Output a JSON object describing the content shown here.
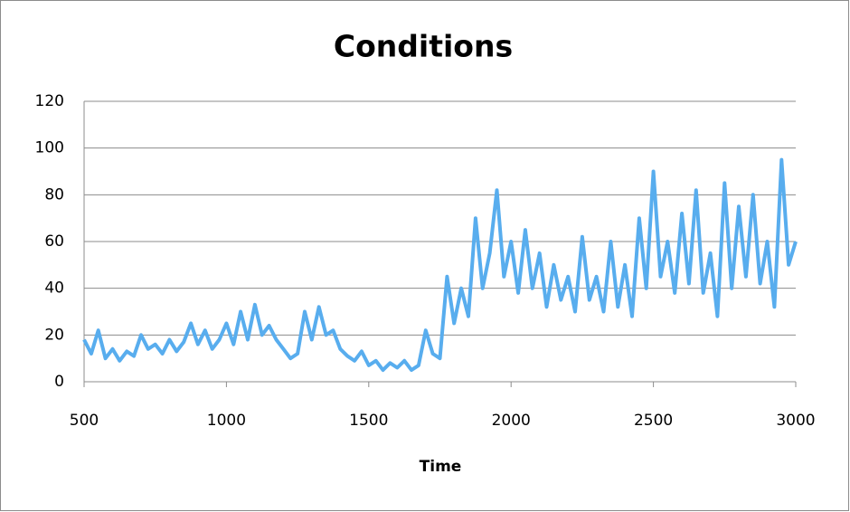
{
  "chart_data": {
    "type": "line",
    "title": "Conditions",
    "x_label": "Time",
    "x": [
      500,
      525,
      550,
      575,
      600,
      625,
      650,
      675,
      700,
      725,
      750,
      775,
      800,
      825,
      850,
      875,
      900,
      925,
      950,
      975,
      1000,
      1025,
      1050,
      1075,
      1100,
      1125,
      1150,
      1175,
      1200,
      1225,
      1250,
      1275,
      1300,
      1325,
      1350,
      1375,
      1400,
      1425,
      1450,
      1475,
      1500,
      1525,
      1550,
      1575,
      1600,
      1625,
      1650,
      1675,
      1700,
      1725,
      1750,
      1775,
      1800,
      1825,
      1850,
      1875,
      1900,
      1925,
      1950,
      1975,
      2000,
      2025,
      2050,
      2075,
      2100,
      2125,
      2150,
      2175,
      2200,
      2225,
      2250,
      2275,
      2300,
      2325,
      2350,
      2375,
      2400,
      2425,
      2450,
      2475,
      2500,
      2525,
      2550,
      2575,
      2600,
      2625,
      2650,
      2675,
      2700,
      2725,
      2750,
      2775,
      2800,
      2825,
      2850,
      2875,
      2900,
      2925,
      2950,
      2975,
      3000
    ],
    "series": [
      {
        "color": "#58adee",
        "values": [
          18,
          12,
          22,
          10,
          14,
          9,
          13,
          11,
          20,
          14,
          16,
          12,
          18,
          13,
          17,
          25,
          16,
          22,
          14,
          18,
          25,
          16,
          30,
          18,
          33,
          20,
          24,
          18,
          14,
          10,
          12,
          30,
          18,
          32,
          20,
          22,
          14,
          11,
          9,
          13,
          7,
          9,
          5,
          8,
          6,
          9,
          5,
          7,
          22,
          12,
          10,
          45,
          25,
          40,
          28,
          70,
          40,
          55,
          82,
          45,
          60,
          38,
          65,
          40,
          55,
          32,
          50,
          35,
          45,
          30,
          62,
          35,
          45,
          30,
          60,
          32,
          50,
          28,
          70,
          40,
          90,
          45,
          60,
          38,
          72,
          42,
          82,
          38,
          55,
          28,
          85,
          40,
          75,
          45,
          80,
          42,
          60,
          32,
          95,
          50,
          60
        ]
      }
    ],
    "xlim": [
      500,
      3000
    ],
    "xticks": [
      500,
      1000,
      1500,
      2000,
      2500,
      3000
    ],
    "ylim": [
      0,
      120
    ],
    "yticks": [
      0,
      20,
      40,
      60,
      80,
      100,
      120
    ],
    "grid": true
  }
}
